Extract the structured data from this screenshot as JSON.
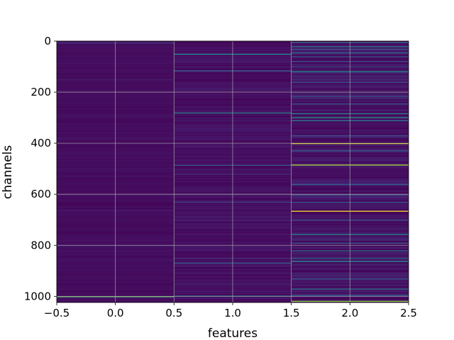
{
  "chart_data": {
    "type": "heatmap",
    "title": "",
    "xlabel": "features",
    "ylabel": "channels",
    "xlim": [
      -0.5,
      2.5
    ],
    "ylim": [
      1024,
      0
    ],
    "y_inverted": true,
    "x_ticks": [
      -0.5,
      0.0,
      0.5,
      1.0,
      1.5,
      2.0,
      2.5
    ],
    "x_tick_labels": [
      "−0.5",
      "0.0",
      "0.5",
      "1.0",
      "1.5",
      "2.0",
      "2.5"
    ],
    "y_ticks": [
      0,
      200,
      400,
      600,
      800,
      1000
    ],
    "y_tick_labels": [
      "0",
      "200",
      "400",
      "600",
      "800",
      "1000"
    ],
    "grid": true,
    "colormap": "viridis",
    "n_rows": 1024,
    "n_cols": 3,
    "background_value": 0.02,
    "columns": [
      {
        "feature": 0,
        "base": 0.04,
        "lines": [
          {
            "row": 6,
            "value": 0.18
          },
          {
            "row": 150,
            "value": 0.12
          },
          {
            "row": 380,
            "value": 0.1
          },
          {
            "row": 662,
            "value": 0.12
          },
          {
            "row": 800,
            "value": 0.15
          },
          {
            "row": 1000,
            "value": 0.75
          }
        ]
      },
      {
        "feature": 1,
        "base": 0.05,
        "lines": [
          {
            "row": 50,
            "value": 0.5
          },
          {
            "row": 115,
            "value": 0.3
          },
          {
            "row": 280,
            "value": 0.45
          },
          {
            "row": 485,
            "value": 0.3
          },
          {
            "row": 520,
            "value": 0.18
          },
          {
            "row": 630,
            "value": 0.2
          },
          {
            "row": 700,
            "value": 0.15
          },
          {
            "row": 850,
            "value": 0.18
          },
          {
            "row": 868,
            "value": 0.3
          },
          {
            "row": 997,
            "value": 0.4
          }
        ]
      },
      {
        "feature": 2,
        "base": 0.06,
        "lines": [
          {
            "row": 5,
            "value": 0.35
          },
          {
            "row": 20,
            "value": 0.4
          },
          {
            "row": 30,
            "value": 0.3
          },
          {
            "row": 45,
            "value": 0.4
          },
          {
            "row": 60,
            "value": 0.3
          },
          {
            "row": 78,
            "value": 0.25
          },
          {
            "row": 100,
            "value": 0.2
          },
          {
            "row": 118,
            "value": 0.5
          },
          {
            "row": 160,
            "value": 0.25
          },
          {
            "row": 215,
            "value": 0.25
          },
          {
            "row": 245,
            "value": 0.3
          },
          {
            "row": 283,
            "value": 0.45
          },
          {
            "row": 298,
            "value": 0.55
          },
          {
            "row": 310,
            "value": 0.4
          },
          {
            "row": 370,
            "value": 0.25
          },
          {
            "row": 400,
            "value": 0.95
          },
          {
            "row": 428,
            "value": 0.3
          },
          {
            "row": 484,
            "value": 0.9
          },
          {
            "row": 560,
            "value": 0.3
          },
          {
            "row": 600,
            "value": 0.25
          },
          {
            "row": 630,
            "value": 0.3
          },
          {
            "row": 665,
            "value": 1.0
          },
          {
            "row": 700,
            "value": 0.25
          },
          {
            "row": 756,
            "value": 0.5
          },
          {
            "row": 790,
            "value": 0.3
          },
          {
            "row": 820,
            "value": 0.4
          },
          {
            "row": 850,
            "value": 0.35
          },
          {
            "row": 862,
            "value": 0.5
          },
          {
            "row": 930,
            "value": 0.3
          },
          {
            "row": 970,
            "value": 0.4
          },
          {
            "row": 995,
            "value": 0.35
          },
          {
            "row": 1018,
            "value": 0.85
          }
        ]
      }
    ]
  }
}
